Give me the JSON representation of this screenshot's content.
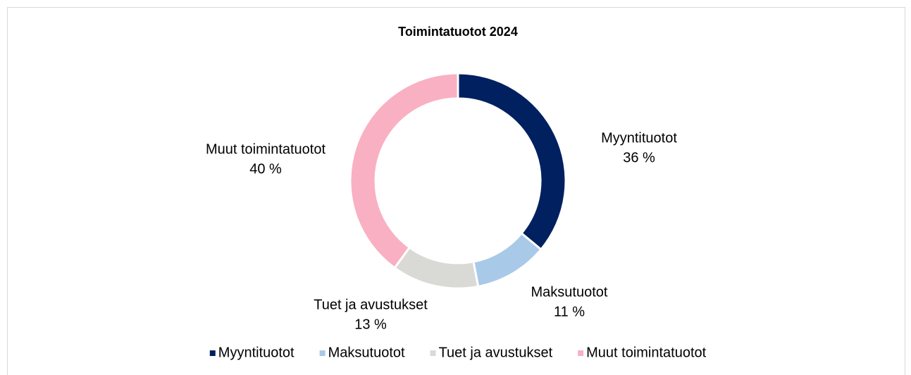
{
  "chart_data": {
    "type": "donut",
    "title": "Toimintatuotot 2024",
    "categories": [
      "Myyntituotot",
      "Maksutuotot",
      "Tuet ja avustukset",
      "Muut toimintatuotot"
    ],
    "values": [
      36,
      11,
      13,
      40
    ],
    "value_labels": [
      "36 %",
      "11 %",
      "13 %",
      "40 %"
    ],
    "colors": [
      "#002060",
      "#a9c9e8",
      "#d9d9d6",
      "#f9b0c3"
    ],
    "legend": "bottom"
  }
}
